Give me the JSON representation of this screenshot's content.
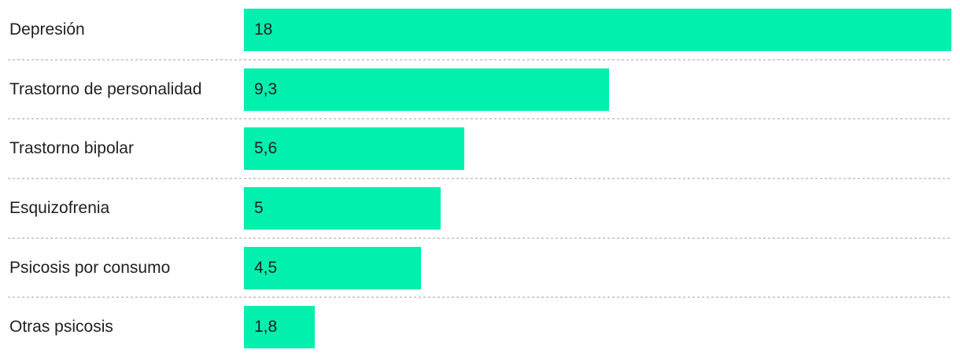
{
  "colors": {
    "bar": "#02f0ad",
    "text": "#212121",
    "separator": "#cfcfcf",
    "background": "#ffffff"
  },
  "chart_data": {
    "type": "bar",
    "orientation": "horizontal",
    "title": "",
    "xlabel": "",
    "ylabel": "",
    "categories": [
      "Depresión",
      "Trastorno de personalidad",
      "Trastorno bipolar",
      "Esquizofrenia",
      "Psicosis por consumo",
      "Otras psicosis"
    ],
    "values": [
      18,
      9.3,
      5.6,
      5,
      4.5,
      1.8
    ],
    "value_labels": [
      "18",
      "9,3",
      "5,6",
      "5",
      "4,5",
      "1,8"
    ],
    "xlim": [
      0,
      18
    ],
    "grid": false,
    "legend_position": "none",
    "value_label_position": "inside-start",
    "separator_style": "dotted"
  }
}
